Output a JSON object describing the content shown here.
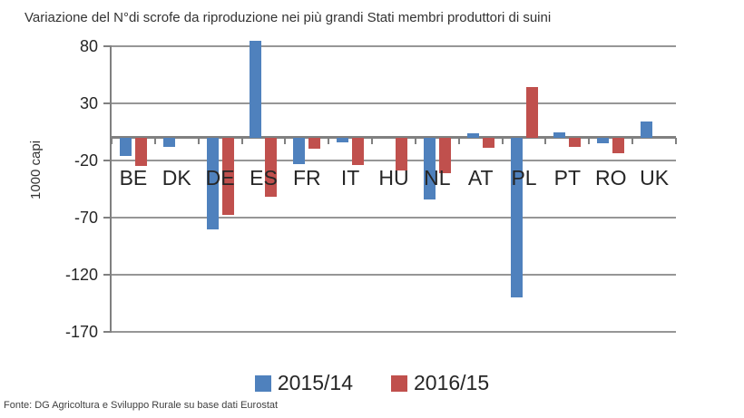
{
  "footer": "Fonte: DG Agricoltura e Sviluppo Rurale su base dati Eurostat",
  "chart_data": {
    "type": "bar",
    "title": "Variazione del N°di scrofe da riproduzione nei più grandi Stati membri produttori di suini",
    "ylabel": "1000 capi",
    "categories": [
      "BE",
      "DK",
      "DE",
      "ES",
      "FR",
      "IT",
      "HU",
      "NL",
      "AT",
      "PL",
      "PT",
      "RO",
      "UK"
    ],
    "series": [
      {
        "name": "2015/14",
        "color": "#4F81BD",
        "values": [
          -16,
          -8,
          -80,
          85,
          -23,
          -4,
          0,
          -54,
          4,
          -140,
          5,
          -5,
          14
        ]
      },
      {
        "name": "2016/15",
        "color": "#C0504D",
        "values": [
          -25,
          0,
          -68,
          -52,
          -10,
          -24,
          -29,
          -31,
          -9,
          44,
          -8,
          -14,
          0
        ]
      }
    ],
    "yticks": [
      80,
      30,
      -20,
      -70,
      -120,
      -170
    ],
    "ylim": [
      -170,
      80
    ],
    "grid": true,
    "legend_position": "bottom"
  }
}
